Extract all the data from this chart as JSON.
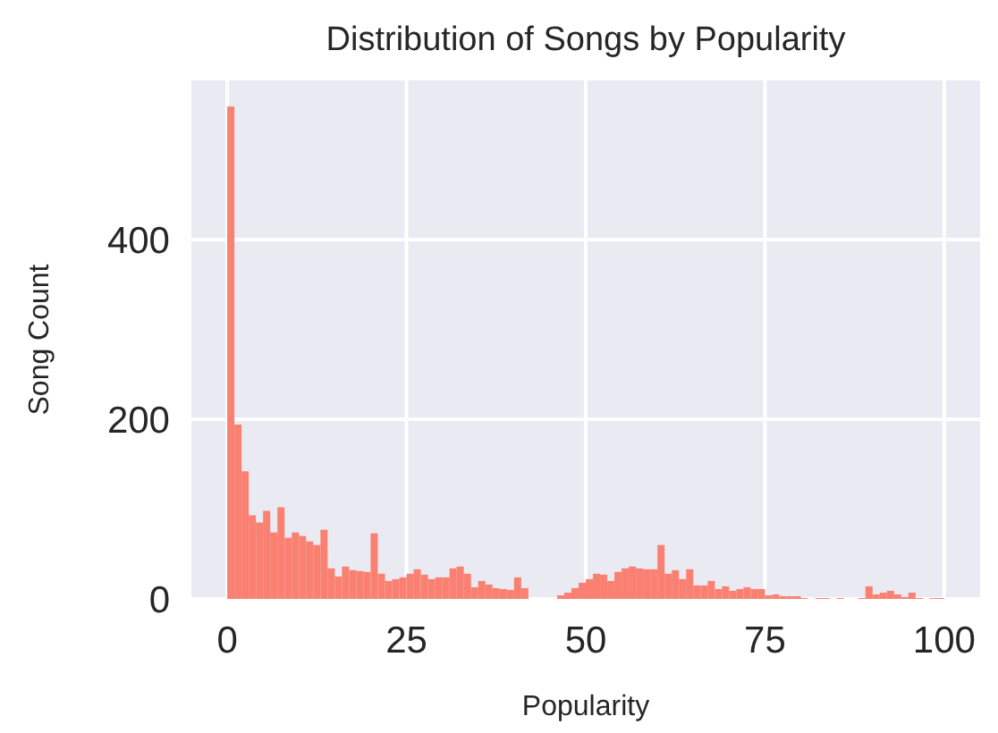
{
  "chart_data": {
    "type": "histogram",
    "title": "Distribution of Songs by Popularity",
    "xlabel": "Popularity",
    "ylabel": "Song Count",
    "bins": [
      0,
      1,
      2,
      3,
      4,
      5,
      6,
      7,
      8,
      9,
      10,
      11,
      12,
      13,
      14,
      15,
      16,
      17,
      18,
      19,
      20,
      21,
      22,
      23,
      24,
      25,
      26,
      27,
      28,
      29,
      30,
      31,
      32,
      33,
      34,
      35,
      36,
      37,
      38,
      39,
      40,
      41,
      42,
      43,
      44,
      45,
      46,
      47,
      48,
      49,
      50,
      51,
      52,
      53,
      54,
      55,
      56,
      57,
      58,
      59,
      60,
      61,
      62,
      63,
      64,
      65,
      66,
      67,
      68,
      69,
      70,
      71,
      72,
      73,
      74,
      75,
      76,
      77,
      78,
      79,
      80,
      81,
      82,
      83,
      84,
      85,
      86,
      87,
      88,
      89,
      90,
      91,
      92,
      93,
      94,
      95,
      96,
      97,
      98,
      99,
      100
    ],
    "values": [
      548,
      194,
      142,
      93,
      85,
      98,
      74,
      102,
      68,
      74,
      70,
      64,
      60,
      77,
      34,
      25,
      36,
      32,
      31,
      30,
      73,
      28,
      20,
      22,
      24,
      28,
      33,
      27,
      22,
      24,
      24,
      34,
      36,
      28,
      13,
      20,
      16,
      12,
      11,
      10,
      24,
      12,
      0,
      0,
      0,
      0,
      4,
      7,
      12,
      18,
      22,
      28,
      27,
      20,
      30,
      34,
      36,
      34,
      33,
      33,
      60,
      28,
      32,
      22,
      33,
      15,
      15,
      20,
      11,
      14,
      9,
      11,
      13,
      11,
      11,
      4,
      5,
      3,
      3,
      3,
      1,
      0,
      1,
      1,
      0,
      1,
      0,
      0,
      1,
      14,
      5,
      7,
      9,
      5,
      2,
      7,
      1,
      0,
      1,
      1
    ],
    "color": "#fa8072",
    "xlim": [
      -5,
      105
    ],
    "ylim": [
      0,
      577
    ],
    "xticks": [
      0,
      25,
      50,
      75,
      100
    ],
    "yticks": [
      0,
      200,
      400
    ],
    "grid": true
  }
}
